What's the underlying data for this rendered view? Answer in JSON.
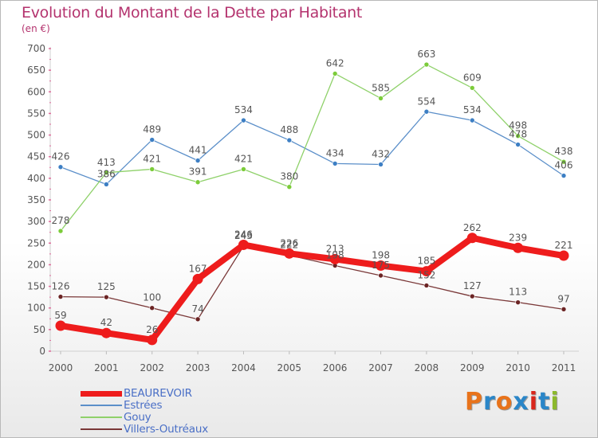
{
  "title": "Evolution du Montant de la Dette par Habitant",
  "subtitle": "(en €)",
  "brand": {
    "text": "Proxiti",
    "letter_colors": [
      "#e8731b",
      "#2a86c8",
      "#e8731b",
      "#2a86c8",
      "#d9261c",
      "#2a86c8",
      "#8cb92c"
    ]
  },
  "chart_data": {
    "type": "line",
    "title": "Evolution du Montant de la Dette par Habitant",
    "subtitle": "(en €)",
    "x": [
      "2000",
      "2001",
      "2002",
      "2003",
      "2004",
      "2005",
      "2006",
      "2007",
      "2008",
      "2009",
      "2010",
      "2011"
    ],
    "ylim": [
      0,
      700
    ],
    "yticks": [
      0,
      50,
      100,
      150,
      200,
      250,
      300,
      350,
      400,
      450,
      500,
      550,
      600,
      650,
      700
    ],
    "grid": false,
    "legend_position": "bottom-left",
    "series": [
      {
        "name": "Estrées",
        "color": "#5b8fc9",
        "point_color": "#3d7fc4",
        "values": [
          426,
          386,
          489,
          441,
          534,
          488,
          434,
          432,
          554,
          534,
          478,
          406
        ]
      },
      {
        "name": "Gouy",
        "color": "#8fd16a",
        "point_color": "#7ccc3a",
        "values": [
          278,
          413,
          421,
          391,
          421,
          380,
          642,
          585,
          663,
          609,
          498,
          438
        ]
      },
      {
        "name": "Villers-Outréaux",
        "color": "#7a3838",
        "point_color": "#6b2424",
        "values": [
          126,
          125,
          100,
          74,
          243,
          222,
          198,
          175,
          152,
          127,
          113,
          97
        ]
      },
      {
        "name": "BEAUREVOIR",
        "color": "#ee1c1c",
        "point_color": "#ee1c1c",
        "values": [
          59,
          42,
          26,
          167,
          246,
          226,
          213,
          198,
          185,
          262,
          239,
          221
        ]
      }
    ],
    "point_labels": [
      {
        "series": "Estrées",
        "labels": [
          "426",
          "386",
          "489",
          "441",
          "534",
          "488",
          "434",
          "432",
          "554",
          "534",
          "478",
          "406"
        ]
      },
      {
        "series": "Gouy",
        "labels": [
          "278",
          "413",
          "421",
          "391",
          "421",
          "380",
          "642",
          "585",
          "663",
          "609",
          "498",
          "438"
        ]
      },
      {
        "series": "Villers-Outréaux",
        "labels": [
          "126",
          "125",
          "100",
          "74",
          "243",
          "222",
          "198",
          "175",
          "152",
          "127",
          "113",
          "97"
        ]
      },
      {
        "series": "BEAUREVOIR",
        "labels": [
          "59",
          "42",
          "26",
          "167",
          "246",
          "226",
          "213",
          "198",
          "185",
          "262",
          "239",
          "221"
        ]
      }
    ]
  },
  "legend": [
    {
      "label": "BEAUREVOIR",
      "color": "#ee1c1c"
    },
    {
      "label": "Estrées",
      "color": "#5b8fc9"
    },
    {
      "label": "Gouy",
      "color": "#8fd16a"
    },
    {
      "label": "Villers-Outréaux",
      "color": "#7a3838"
    }
  ]
}
